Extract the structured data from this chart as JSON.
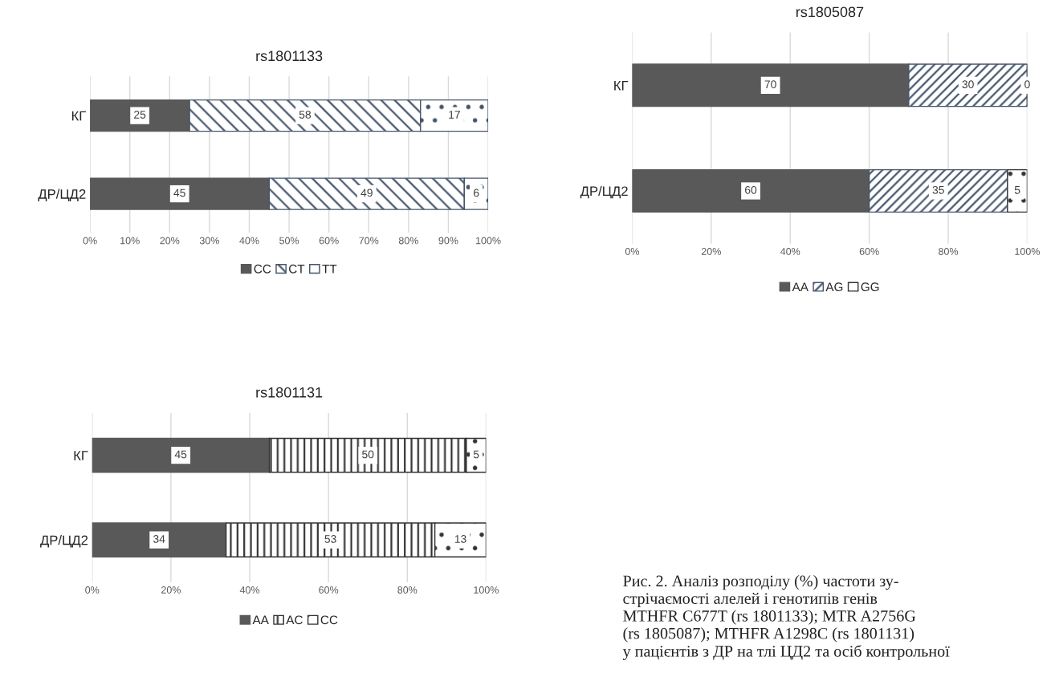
{
  "chart_data": [
    {
      "type": "bar",
      "orientation": "horizontal",
      "stacked": true,
      "title": "rs1801133",
      "categories": [
        "КГ",
        "ДР/ЦД2"
      ],
      "series": [
        {
          "name": "CC",
          "color": "#595959",
          "values": [
            25,
            45
          ]
        },
        {
          "name": "CT",
          "color": "#44546a",
          "values": [
            58,
            49
          ]
        },
        {
          "name": "TT",
          "color": "#44546a",
          "values": [
            17,
            6
          ]
        }
      ],
      "xlim": [
        0,
        100
      ],
      "xticks": [
        {
          "value": 0,
          "label": "0%"
        },
        {
          "value": 10,
          "label": "10%"
        },
        {
          "value": 20,
          "label": "20%"
        },
        {
          "value": 30,
          "label": "30%"
        },
        {
          "value": 40,
          "label": "40%"
        },
        {
          "value": 50,
          "label": "50%"
        },
        {
          "value": 60,
          "label": "60%"
        },
        {
          "value": 70,
          "label": "70%"
        },
        {
          "value": 80,
          "label": "80%"
        },
        {
          "value": 90,
          "label": "90%"
        },
        {
          "value": 100,
          "label": "100%"
        }
      ],
      "grid": "x",
      "legend": "bottom",
      "data_labels": true
    },
    {
      "type": "bar",
      "orientation": "horizontal",
      "stacked": true,
      "title": "rs1805087",
      "categories": [
        "КГ",
        "ДР/ЦД2"
      ],
      "series": [
        {
          "name": "AA",
          "color": "#595959",
          "values": [
            70,
            60
          ],
          "value_labels": [
            "70",
            "60"
          ]
        },
        {
          "name": "AG",
          "color": "#44546a",
          "values": [
            30,
            35
          ],
          "value_labels": [
            "30",
            "35"
          ]
        },
        {
          "name": "GG",
          "color": "#333333",
          "values": [
            0,
            5
          ],
          "value_labels": [
            "0",
            "5"
          ]
        }
      ],
      "xlim": [
        0,
        100
      ],
      "xticks": [
        {
          "value": 0,
          "label": "0%"
        },
        {
          "value": 20,
          "label": "20%"
        },
        {
          "value": 40,
          "label": "40%"
        },
        {
          "value": 60,
          "label": "60%"
        },
        {
          "value": 80,
          "label": "80%"
        },
        {
          "value": 100,
          "label": "100%"
        }
      ],
      "grid": "x",
      "legend": "bottom"
    },
    {
      "type": "bar",
      "orientation": "horizontal",
      "stacked": true,
      "title": "rs1801131",
      "categories": [
        "КГ",
        "ДР/ЦД2"
      ],
      "series": [
        {
          "name": "AA",
          "color": "#595959",
          "values": [
            45,
            34
          ]
        },
        {
          "name": "AC",
          "color": "#333333",
          "values": [
            50,
            53
          ]
        },
        {
          "name": "CC",
          "color": "#333333",
          "values": [
            5,
            13
          ]
        }
      ],
      "xlim": [
        0,
        100
      ],
      "xticks": [
        {
          "value": 0,
          "label": "0%"
        },
        {
          "value": 20,
          "label": "20%"
        },
        {
          "value": 40,
          "label": "40%"
        },
        {
          "value": 60,
          "label": "60%"
        },
        {
          "value": 80,
          "label": "80%"
        },
        {
          "value": 100,
          "label": "100%"
        }
      ],
      "grid": "x",
      "legend": "bottom",
      "data_labels": true,
      "annotations": [
        "Рис. 2. Аналіз розподілу (%) частоти зу-\nстрічаємості алелей і генотипів генів\nMTHFR C677T (rs 1801133); MTR A2756G\n(rs 1805087); MTHFR A1298C (rs 1801131)\nу пацієнтів з ДР на тлі ЦД2 та осіб контрольної"
      ]
    }
  ]
}
